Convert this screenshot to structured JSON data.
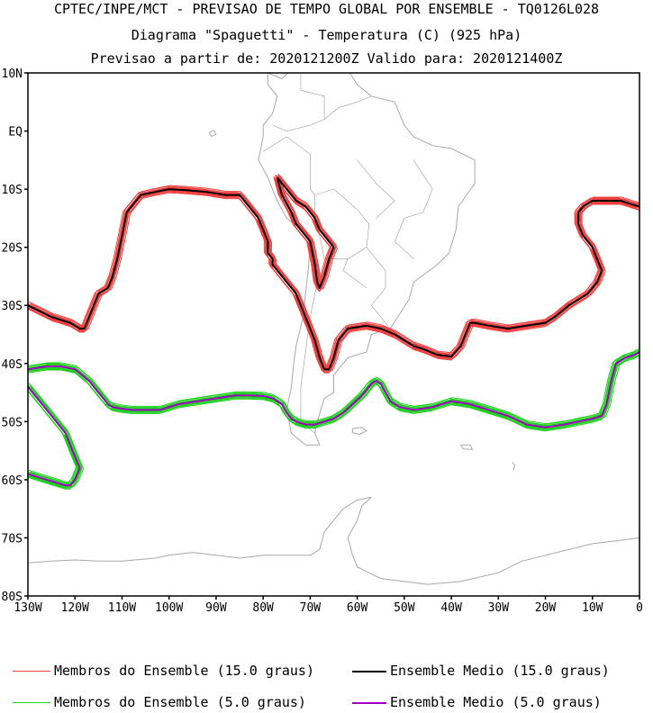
{
  "header": {
    "line1": "CPTEC/INPE/MCT - PREVISAO DE TEMPO GLOBAL POR ENSEMBLE - TQ0126L028",
    "line2": "Diagrama \"Spaguetti\" - Temperatura (C) (925 hPa)",
    "line3": "Previsao a partir de: 2020121200Z  Valido para: 2020121400Z"
  },
  "axes": {
    "lat_labels": [
      "10N",
      "EQ",
      "10S",
      "20S",
      "30S",
      "40S",
      "50S",
      "60S",
      "70S",
      "80S"
    ],
    "lon_labels": [
      "130W",
      "120W",
      "110W",
      "100W",
      "90W",
      "80W",
      "70W",
      "60W",
      "50W",
      "40W",
      "30W",
      "20W",
      "10W",
      "0"
    ]
  },
  "legend": {
    "members_15": "Membros do Ensemble (15.0 graus)",
    "mean_15": "Ensemble Medio (15.0 graus)",
    "members_5": "Membros do Ensemble (5.0 graus)",
    "mean_5": "Ensemble Medio (5.0 graus)"
  },
  "colors": {
    "members_15": "#f04040",
    "mean_15": "#000000",
    "members_5": "#20d020",
    "mean_5": "#a000c0",
    "coast": "#a8a8a8"
  },
  "chart_data": {
    "type": "line",
    "map_extent": {
      "lon": [
        -130,
        0
      ],
      "lat": [
        -80,
        10
      ]
    },
    "series": [
      {
        "name": "Ensemble Medio (15.0 graus)",
        "lon": [
          -130,
          -125,
          -121,
          -119,
          -118,
          -117,
          -116,
          -115,
          -113,
          -112,
          -111,
          -110,
          -109,
          -106,
          -103,
          -100,
          -96,
          -92,
          -88,
          -85,
          -83,
          -81,
          -80,
          -79,
          -79,
          -78,
          -78,
          -76,
          -73,
          -71,
          -70,
          -69,
          -68,
          -67,
          -66,
          -65,
          -64,
          -62,
          -58,
          -55,
          -52,
          -50,
          -48,
          -46,
          -43,
          -40,
          -38,
          -37,
          -36,
          -35,
          -32,
          -28,
          -24,
          -20,
          -18,
          -15,
          -11,
          -9,
          -8,
          -9,
          -10,
          -12,
          -13,
          -13,
          -12,
          -10,
          -7,
          -4,
          -2,
          0
        ],
        "lat": [
          -30,
          -32,
          -33,
          -34,
          -34,
          -32,
          -30,
          -28,
          -27,
          -25,
          -22,
          -18,
          -14,
          -11,
          -10.5,
          -10,
          -10.2,
          -10.5,
          -11,
          -11,
          -13,
          -15,
          -17,
          -19,
          -21,
          -22,
          -23,
          -25,
          -28,
          -32,
          -34,
          -36,
          -39,
          -41,
          -41,
          -39,
          -36,
          -34,
          -33.5,
          -34,
          -35,
          -36,
          -37,
          -37.5,
          -38.5,
          -38.8,
          -37,
          -35,
          -33,
          -33,
          -33.5,
          -34,
          -33.5,
          -33,
          -32,
          -30,
          -28,
          -26,
          -24,
          -22,
          -20,
          -18,
          -16,
          -14,
          -13,
          -12,
          -12,
          -12,
          -12.5,
          -13
        ]
      },
      {
        "name": "Ensemble Medio (15.0 graus)",
        "lon": [
          -77,
          -76,
          -75,
          -74,
          -73,
          -71,
          -70,
          -69,
          -68,
          -67,
          -66,
          -65,
          -66,
          -67,
          -68,
          -68.5,
          -69,
          -69.5,
          -70,
          -71,
          -72,
          -73,
          -74,
          -76,
          -77
        ],
        "lat": [
          -8,
          -9,
          -10,
          -11,
          -12,
          -13,
          -14,
          -15,
          -17,
          -18,
          -19,
          -20,
          -22,
          -25,
          -27,
          -26,
          -23,
          -21,
          -19,
          -18,
          -17,
          -16,
          -14,
          -11,
          -8
        ]
      },
      {
        "name": "Ensemble Medio (5.0 graus)",
        "lon": [
          -130,
          -126,
          -123,
          -120,
          -117,
          -115,
          -114,
          -113,
          -112,
          -110,
          -108,
          -106,
          -102,
          -98,
          -94,
          -90,
          -86,
          -83,
          -80,
          -78,
          -76,
          -75,
          -74,
          -73,
          -71,
          -69,
          -67,
          -65,
          -63,
          -61,
          -59,
          -58,
          -57,
          -56,
          -55,
          -54,
          -53,
          -51,
          -48,
          -44,
          -40,
          -36,
          -32,
          -28,
          -24,
          -20,
          -16,
          -13,
          -10,
          -8,
          -7,
          -6,
          -5,
          -3,
          -1,
          0
        ],
        "lat": [
          -41,
          -40.5,
          -40.5,
          -41,
          -43,
          -45,
          -46,
          -47,
          -47.5,
          -47.8,
          -48,
          -48,
          -48,
          -47,
          -46.5,
          -46,
          -45.5,
          -45.5,
          -45.6,
          -46,
          -47,
          -48.5,
          -49.5,
          -50,
          -50.5,
          -50.5,
          -50,
          -49.5,
          -48.5,
          -47,
          -45.5,
          -44.5,
          -43.5,
          -43,
          -43.5,
          -45,
          -46.5,
          -47.5,
          -48,
          -47.5,
          -46.5,
          -47,
          -48,
          -49,
          -50.5,
          -51,
          -50.5,
          -50,
          -49.5,
          -49,
          -47,
          -43,
          -40,
          -39,
          -38.5,
          -38
        ]
      },
      {
        "name": "Ensemble Medio (5.0 graus)",
        "lon": [
          -130,
          -128,
          -126,
          -124,
          -122,
          -121,
          -120,
          -119,
          -120,
          -121,
          -122,
          -124,
          -126,
          -128,
          -130
        ],
        "lat": [
          -44,
          -46,
          -48,
          -50,
          -52,
          -54,
          -56,
          -58,
          -60,
          -61,
          -61,
          -60.5,
          -60,
          -59.5,
          -59
        ]
      }
    ]
  }
}
